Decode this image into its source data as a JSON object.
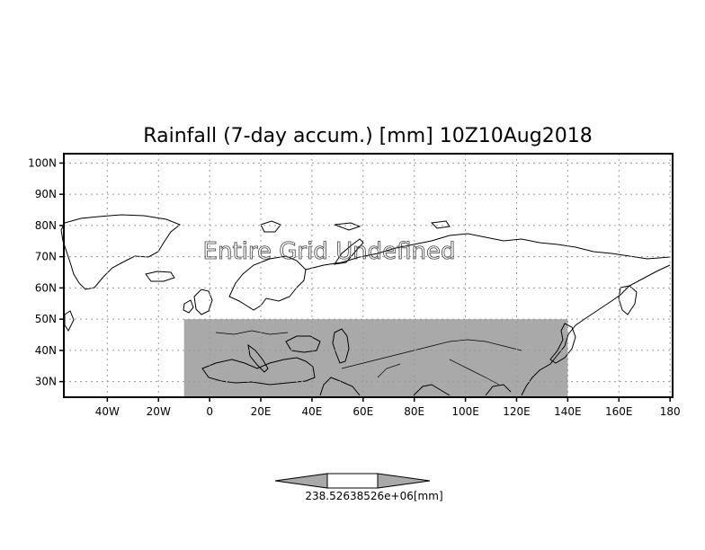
{
  "title": "Rainfall (7-day accum.) [mm] 10Z10Aug2018",
  "overlay_text": "Entire Grid Undefined",
  "map": {
    "lon_range": [
      -57,
      181
    ],
    "lat_range": [
      25,
      103
    ],
    "shaded_region": {
      "lon": [
        -10,
        140
      ],
      "lat": [
        25,
        50
      ]
    },
    "colors": {
      "frame": "#000000",
      "shade": "#a9a9a9",
      "grid": "#9a9a9a",
      "land_line": "#000000"
    },
    "lat_ticks": [
      {
        "value": 100,
        "label": "100N"
      },
      {
        "value": 90,
        "label": "90N"
      },
      {
        "value": 80,
        "label": "80N"
      },
      {
        "value": 70,
        "label": "70N"
      },
      {
        "value": 60,
        "label": "60N"
      },
      {
        "value": 50,
        "label": "50N"
      },
      {
        "value": 40,
        "label": "40N"
      },
      {
        "value": 30,
        "label": "30N"
      }
    ],
    "lon_ticks": [
      {
        "value": -40,
        "label": "40W"
      },
      {
        "value": -20,
        "label": "20W"
      },
      {
        "value": 0,
        "label": "0"
      },
      {
        "value": 20,
        "label": "20E"
      },
      {
        "value": 40,
        "label": "40E"
      },
      {
        "value": 60,
        "label": "60E"
      },
      {
        "value": 80,
        "label": "80E"
      },
      {
        "value": 100,
        "label": "100E"
      },
      {
        "value": 120,
        "label": "120E"
      },
      {
        "value": 140,
        "label": "140E"
      },
      {
        "value": 160,
        "label": "160E"
      },
      {
        "value": 180,
        "label": "180"
      }
    ]
  },
  "colorbar": {
    "label": "238.52638526e+06[mm]",
    "colors": {
      "left": "#a9a9a9",
      "middle": "#ffffff",
      "right": "#a9a9a9"
    }
  }
}
